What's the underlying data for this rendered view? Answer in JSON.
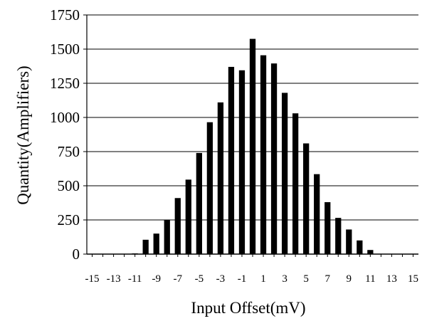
{
  "chart_data": {
    "type": "bar",
    "xlabel": "Input Offset(mV)",
    "ylabel": "Quantity(Amplifiers)",
    "ylim": [
      0,
      1750
    ],
    "yticks": [
      0,
      250,
      500,
      750,
      1000,
      1250,
      1500,
      1750
    ],
    "grid": "horizontal",
    "legend": "none",
    "bar_color": "#000000",
    "categories": [
      -15,
      -14,
      -13,
      -12,
      -11,
      -10,
      -9,
      -8,
      -7,
      -6,
      -5,
      -4,
      -3,
      -2,
      -1,
      0,
      1,
      2,
      3,
      4,
      5,
      6,
      7,
      8,
      9,
      10,
      11,
      12,
      13,
      14,
      15
    ],
    "xtick_labels": [
      "-15",
      "-13",
      "-11",
      "-9",
      "-7",
      "-5",
      "-3",
      "-1",
      "1",
      "3",
      "5",
      "7",
      "9",
      "11",
      "13",
      "15"
    ],
    "values": [
      0,
      0,
      0,
      0,
      5,
      105,
      150,
      250,
      410,
      545,
      740,
      965,
      1110,
      1370,
      1345,
      1575,
      1455,
      1395,
      1180,
      1030,
      810,
      585,
      380,
      265,
      180,
      100,
      30,
      0,
      0,
      0,
      0
    ]
  }
}
